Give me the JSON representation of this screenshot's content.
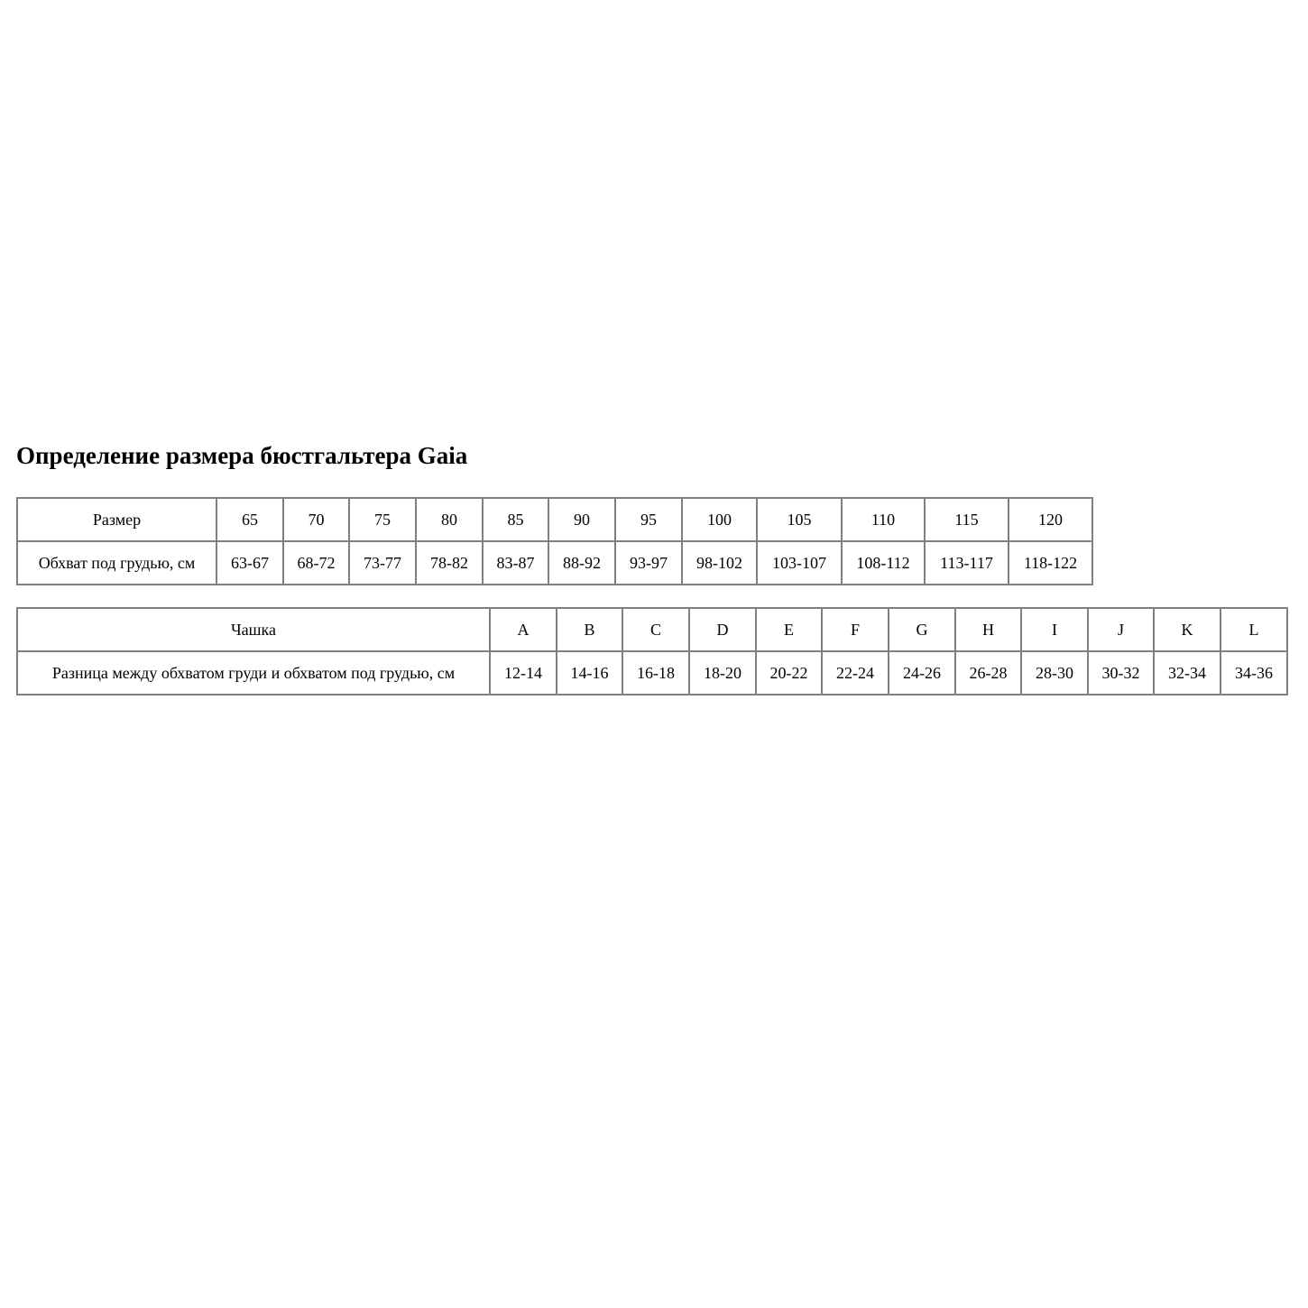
{
  "title": "Определение размера бюстгальтера Gaia",
  "band_table": {
    "rows": [
      [
        "Размер",
        "65",
        "70",
        "75",
        "80",
        "85",
        "90",
        "95",
        "100",
        "105",
        "110",
        "115",
        "120"
      ],
      [
        "Обхват под грудью, см",
        "63-67",
        "68-72",
        "73-77",
        "78-82",
        "83-87",
        "88-92",
        "93-97",
        "98-102",
        "103-107",
        "108-112",
        "113-117",
        "118-122"
      ]
    ]
  },
  "cup_table": {
    "rows": [
      [
        "Чашка",
        "A",
        "B",
        "C",
        "D",
        "E",
        "F",
        "G",
        "H",
        "I",
        "J",
        "K",
        "L"
      ],
      [
        "Разница между обхватом груди и обхватом под грудью, см",
        "12-14",
        "14-16",
        "16-18",
        "18-20",
        "20-22",
        "22-24",
        "24-26",
        "26-28",
        "28-30",
        "30-32",
        "32-34",
        "34-36"
      ]
    ]
  }
}
